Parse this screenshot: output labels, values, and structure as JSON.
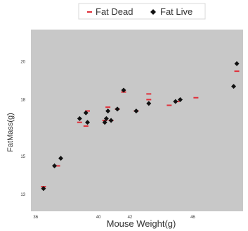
{
  "colors": {
    "background": "#ffffff",
    "plot_area": "#c8c8c8",
    "fat_dead": "#e0303a",
    "fat_live": "#111111",
    "axis_text": "#333333"
  },
  "chart_data": {
    "type": "scatter",
    "title": "",
    "xlabel": "Mouse Weight(g)",
    "ylabel": "FatMass(g)",
    "xlim": [
      35.7,
      49.2
    ],
    "ylim": [
      12.1,
      21.7
    ],
    "x_ticks": [
      36,
      40,
      42,
      46
    ],
    "y_ticks": [
      13,
      15,
      18,
      20
    ],
    "grid": false,
    "legend_position": "top-center",
    "series": [
      {
        "name": "Fat Dead",
        "marker": "dash",
        "color": "#e0303a",
        "points": [
          {
            "x": 36.5,
            "y": 13.4
          },
          {
            "x": 37.4,
            "y": 14.5
          },
          {
            "x": 38.8,
            "y": 16.8
          },
          {
            "x": 39.2,
            "y": 16.6
          },
          {
            "x": 39.3,
            "y": 17.4
          },
          {
            "x": 40.4,
            "y": 16.9
          },
          {
            "x": 40.6,
            "y": 17.6
          },
          {
            "x": 40.8,
            "y": 16.9
          },
          {
            "x": 41.2,
            "y": 17.5
          },
          {
            "x": 41.6,
            "y": 18.4
          },
          {
            "x": 42.4,
            "y": 17.4
          },
          {
            "x": 43.2,
            "y": 18.0
          },
          {
            "x": 43.2,
            "y": 18.3
          },
          {
            "x": 44.5,
            "y": 17.7
          },
          {
            "x": 45.0,
            "y": 17.9
          },
          {
            "x": 46.2,
            "y": 18.1
          },
          {
            "x": 48.8,
            "y": 19.5
          }
        ]
      },
      {
        "name": "Fat Live",
        "marker": "diamond",
        "color": "#111111",
        "points": [
          {
            "x": 36.5,
            "y": 13.3
          },
          {
            "x": 37.2,
            "y": 14.5
          },
          {
            "x": 37.6,
            "y": 14.9
          },
          {
            "x": 38.8,
            "y": 17.0
          },
          {
            "x": 39.2,
            "y": 17.3
          },
          {
            "x": 39.3,
            "y": 16.8
          },
          {
            "x": 40.4,
            "y": 16.8
          },
          {
            "x": 40.5,
            "y": 17.0
          },
          {
            "x": 40.6,
            "y": 17.4
          },
          {
            "x": 40.8,
            "y": 16.9
          },
          {
            "x": 41.2,
            "y": 17.5
          },
          {
            "x": 41.6,
            "y": 18.5
          },
          {
            "x": 42.4,
            "y": 17.4
          },
          {
            "x": 43.2,
            "y": 17.8
          },
          {
            "x": 44.9,
            "y": 17.9
          },
          {
            "x": 45.2,
            "y": 18.0
          },
          {
            "x": 48.6,
            "y": 18.7
          },
          {
            "x": 48.8,
            "y": 19.9
          }
        ]
      }
    ]
  }
}
